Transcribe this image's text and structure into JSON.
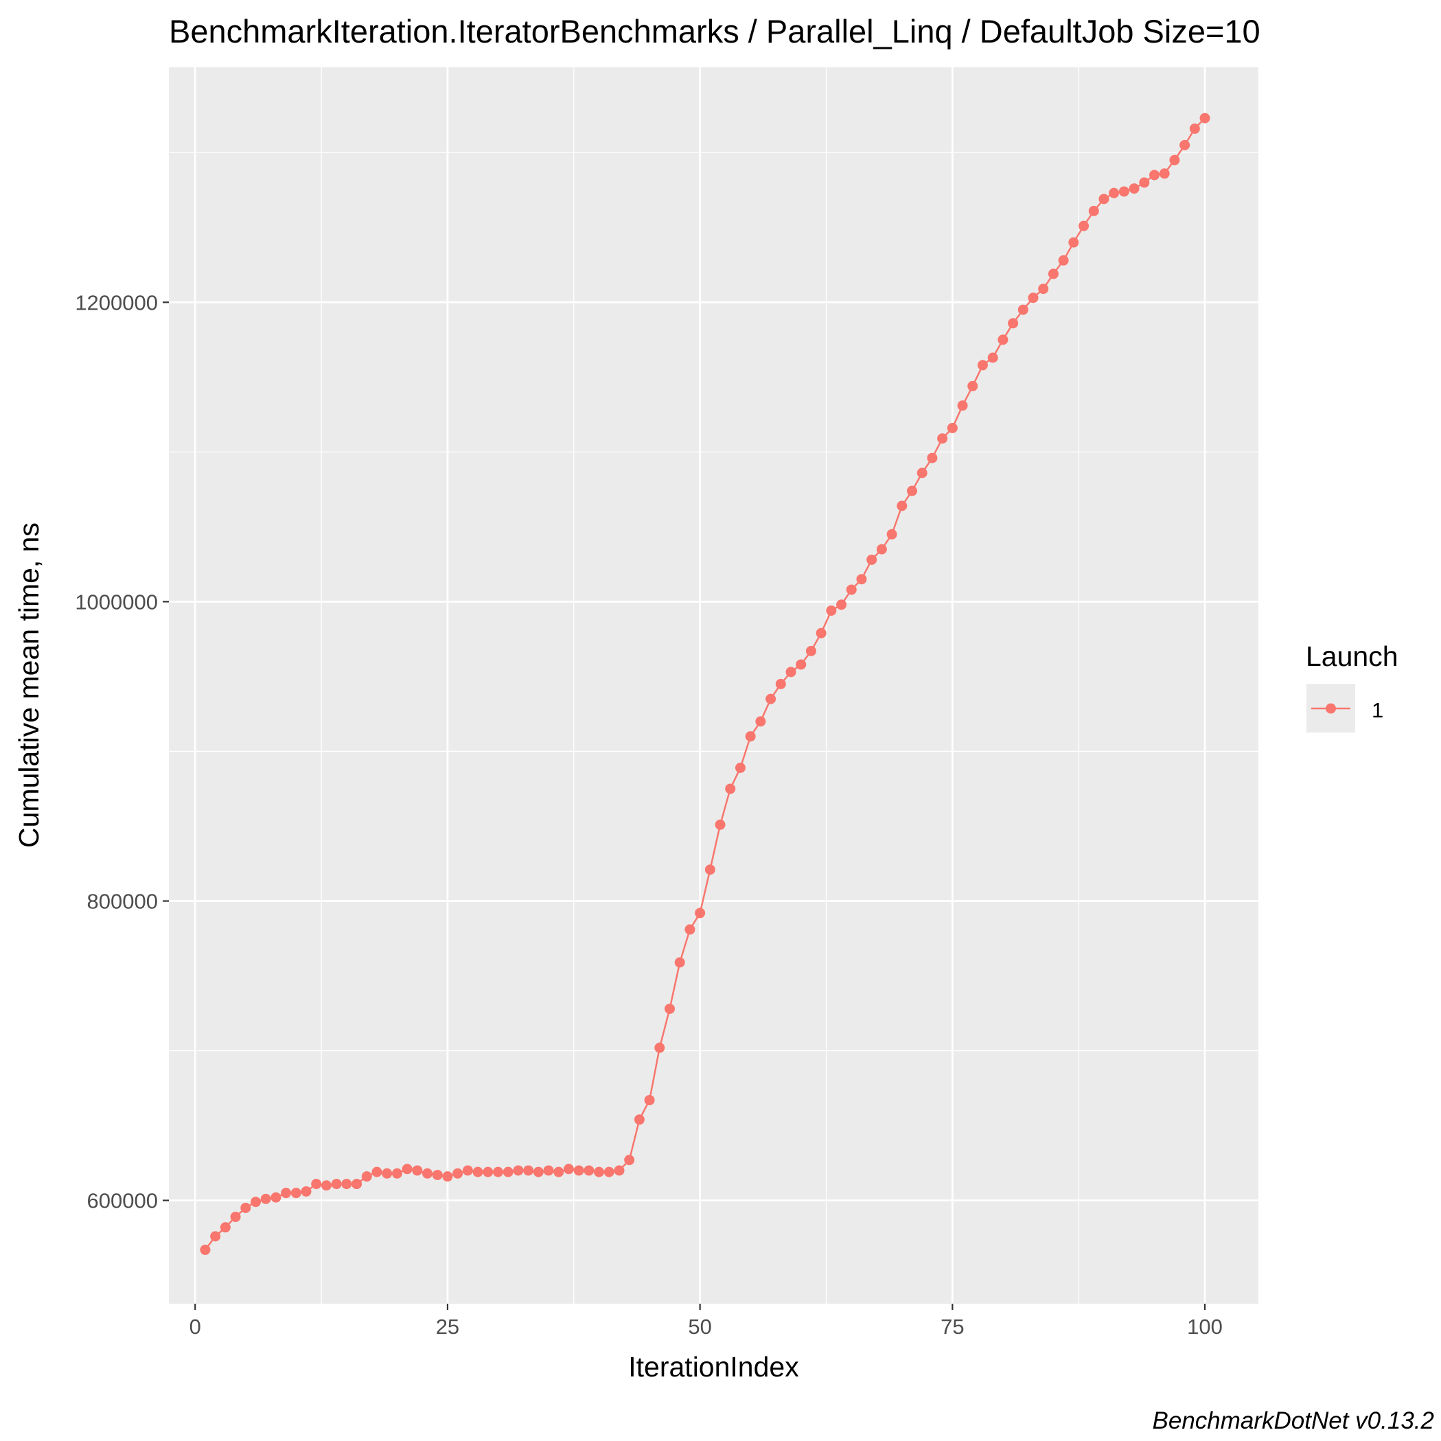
{
  "chart_data": {
    "type": "line",
    "title": "BenchmarkIteration.IteratorBenchmarks / Parallel_Linq / DefaultJob Size=10",
    "xlabel": "IterationIndex",
    "ylabel": "Cumulative mean time, ns",
    "caption": "BenchmarkDotNet v0.13.2",
    "xlim": [
      -2.6,
      105.3
    ],
    "ylim": [
      531000,
      1357000
    ],
    "x_ticks": [
      0,
      25,
      50,
      75,
      100
    ],
    "x_tick_labels": [
      "0",
      "25",
      "50",
      "75",
      "100"
    ],
    "y_ticks": [
      600000,
      800000,
      1000000,
      1200000
    ],
    "y_tick_labels": [
      "600000",
      "800000",
      "1000000",
      "1200000"
    ],
    "grid": true,
    "background": "#ebebeb",
    "legend": {
      "title": "Launch",
      "position": "right"
    },
    "series": [
      {
        "name": "1",
        "color": "#f8766d",
        "x": [
          1,
          2,
          3,
          4,
          5,
          6,
          7,
          8,
          9,
          10,
          11,
          12,
          13,
          14,
          15,
          16,
          17,
          18,
          19,
          20,
          21,
          22,
          23,
          24,
          25,
          26,
          27,
          28,
          29,
          30,
          31,
          32,
          33,
          34,
          35,
          36,
          37,
          38,
          39,
          40,
          41,
          42,
          43,
          44,
          45,
          46,
          47,
          48,
          49,
          50,
          51,
          52,
          53,
          54,
          55,
          56,
          57,
          58,
          59,
          60,
          61,
          62,
          63,
          64,
          65,
          66,
          67,
          68,
          69,
          70,
          71,
          72,
          73,
          74,
          75,
          76,
          77,
          78,
          79,
          80,
          81,
          82,
          83,
          84,
          85,
          86,
          87,
          88,
          89,
          90,
          91,
          92,
          93,
          94,
          95,
          96,
          97,
          98,
          99,
          100
        ],
        "y": [
          567000,
          576000,
          582000,
          589000,
          595000,
          599000,
          601000,
          602000,
          605000,
          605000,
          606000,
          611000,
          610000,
          611000,
          611000,
          611000,
          616000,
          619000,
          618000,
          618000,
          621000,
          620000,
          618000,
          617000,
          616000,
          618000,
          620000,
          619000,
          619000,
          619000,
          619000,
          620000,
          620000,
          619000,
          620000,
          619000,
          621000,
          620000,
          620000,
          619000,
          619000,
          620000,
          627000,
          654000,
          667000,
          702000,
          728000,
          759000,
          781000,
          792000,
          821000,
          851000,
          875000,
          889000,
          910000,
          920000,
          935000,
          945000,
          953000,
          958000,
          967000,
          979000,
          994000,
          998000,
          1008000,
          1015000,
          1028000,
          1035000,
          1045000,
          1064000,
          1074000,
          1086000,
          1096000,
          1109000,
          1116000,
          1131000,
          1144000,
          1158000,
          1163000,
          1175000,
          1186000,
          1195000,
          1203000,
          1209000,
          1219000,
          1228000,
          1240000,
          1251000,
          1261000,
          1269000,
          1273000,
          1274000,
          1276000,
          1280000,
          1285000,
          1286000,
          1295000,
          1305000,
          1316000,
          1323000
        ]
      }
    ]
  }
}
